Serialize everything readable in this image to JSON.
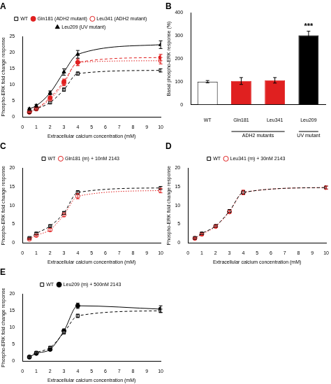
{
  "chart_data": [
    {
      "type": "line",
      "title": "A",
      "x_label": "Extracellular calcium concentration (mM)",
      "y_label": "Phospho-ERK fold change response",
      "x": [
        0.5,
        1,
        2,
        3,
        4,
        10
      ],
      "xlim": [
        0,
        10
      ],
      "xticks": [
        0,
        1,
        2,
        3,
        4,
        5,
        6,
        7,
        8,
        9,
        10
      ],
      "ylim": [
        0,
        25
      ],
      "yticks": [
        0,
        5,
        10,
        15,
        20,
        25
      ],
      "grid": false,
      "legend": "top",
      "series": [
        {
          "name": "WT",
          "color": "#000000",
          "marker": "square_open",
          "line_style": "dashed",
          "values": [
            1.5,
            2.5,
            4.5,
            8.5,
            13.5,
            14.5
          ],
          "errors": [
            0.2,
            0.3,
            0.4,
            0.5,
            0.5,
            0.5
          ]
        },
        {
          "name": "Gln181 (ADH2 mutant)",
          "color": "#e02020",
          "marker": "circle_filled",
          "line_style": "dashed",
          "values": [
            1.5,
            2.5,
            6,
            11,
            17,
            18.5
          ],
          "errors": [
            0.2,
            0.3,
            0.5,
            0.8,
            1,
            1
          ]
        },
        {
          "name": "Leu341 (ADH2 mutant)",
          "color": "#e02020",
          "marker": "circle_open",
          "line_style": "dotted",
          "values": [
            1.5,
            2.5,
            5.5,
            10.5,
            17,
            17.5
          ],
          "errors": [
            0.2,
            0.3,
            0.5,
            0.8,
            1,
            1
          ]
        },
        {
          "name": "Leu209 (UV mutant)",
          "color": "#000000",
          "marker": "triangle_filled",
          "line_style": "solid",
          "values": [
            2.5,
            3.5,
            7.5,
            14,
            19.5,
            22.5
          ],
          "errors": [
            0.3,
            0.4,
            0.6,
            1,
            1.2,
            1.2
          ]
        }
      ]
    },
    {
      "type": "bar",
      "title": "B",
      "y_label": "Basal phospho-ERK response (%)",
      "categories": [
        "WT",
        "Gln181",
        "Leu341",
        "Leu209"
      ],
      "values": [
        100,
        103,
        106,
        302
      ],
      "errors": [
        5,
        15,
        12,
        18
      ],
      "colors": [
        "#ffffff",
        "#e02020",
        "#e02020",
        "#000000"
      ],
      "ylim": [
        0,
        400
      ],
      "yticks": [
        0,
        100,
        200,
        300,
        400
      ],
      "grid": false,
      "groups": [
        {
          "label": "ADH2 mutants",
          "categories": [
            "Gln181",
            "Leu341"
          ]
        },
        {
          "label": "UV mutant",
          "categories": [
            "Leu209"
          ]
        }
      ],
      "annotations": [
        {
          "text": "***",
          "category": "Leu209"
        }
      ]
    },
    {
      "type": "line",
      "title": "C",
      "x_label": "Extracellular calcium concentration (mM)",
      "y_label": "Phospho-ERK fold change response",
      "x": [
        0.5,
        1,
        2,
        3,
        4,
        10
      ],
      "xlim": [
        0,
        10
      ],
      "xticks": [
        0,
        1,
        2,
        3,
        4,
        5,
        6,
        7,
        8,
        9,
        10
      ],
      "ylim": [
        0,
        20
      ],
      "yticks": [
        0,
        5,
        10,
        15,
        20
      ],
      "grid": false,
      "legend": "top",
      "series": [
        {
          "name": "WT",
          "color": "#000000",
          "marker": "square_open",
          "line_style": "dashed",
          "values": [
            1.3,
            2.5,
            4.5,
            8,
            13.5,
            14.7
          ],
          "errors": [
            0.2,
            0.3,
            0.3,
            0.4,
            0.5,
            0.4
          ]
        },
        {
          "name": "Gln181 (m) + 10nM 2143",
          "color": "#e02020",
          "marker": "circle_open",
          "line_style": "dotted",
          "values": [
            1,
            2,
            3.5,
            7.5,
            12.5,
            14
          ],
          "errors": [
            0.2,
            0.3,
            0.4,
            0.5,
            0.7,
            0.6
          ]
        }
      ]
    },
    {
      "type": "line",
      "title": "D",
      "x_label": "Extracellular calcium concentration (mM)",
      "y_label": "Phospho-ERK fold change response",
      "x": [
        0.5,
        1,
        2,
        3,
        4,
        10
      ],
      "xlim": [
        0,
        10
      ],
      "xticks": [
        0,
        1,
        2,
        3,
        4,
        5,
        6,
        7,
        8,
        9,
        10
      ],
      "ylim": [
        0,
        20
      ],
      "yticks": [
        0,
        5,
        10,
        15,
        20
      ],
      "grid": false,
      "legend": "top",
      "series": [
        {
          "name": "WT",
          "color": "#000000",
          "marker": "square_open",
          "line_style": "dashed",
          "values": [
            1.3,
            2.5,
            4.5,
            8.5,
            13.5,
            14.8
          ],
          "errors": [
            0.2,
            0.3,
            0.3,
            0.4,
            0.5,
            0.4
          ]
        },
        {
          "name": "Leu341 (m) + 30nM 2143",
          "color": "#e02020",
          "marker": "circle_open",
          "line_style": "dotted",
          "values": [
            1.2,
            2.3,
            4.4,
            8.3,
            13.5,
            14.8
          ],
          "errors": [
            0.2,
            0.3,
            0.3,
            0.4,
            0.6,
            0.4
          ]
        }
      ]
    },
    {
      "type": "line",
      "title": "E",
      "x_label": "Extracellular calcium concentration (mM)",
      "y_label": "Phospho-ERK fold change response",
      "x": [
        0.5,
        1,
        2,
        3,
        4,
        10
      ],
      "xlim": [
        0,
        10
      ],
      "xticks": [
        0,
        1,
        2,
        3,
        4,
        5,
        6,
        7,
        8,
        9,
        10
      ],
      "ylim": [
        0,
        20
      ],
      "yticks": [
        0,
        5,
        10,
        15,
        20
      ],
      "grid": false,
      "legend": "top",
      "series": [
        {
          "name": "WT",
          "color": "#000000",
          "marker": "square_open",
          "line_style": "dashed",
          "values": [
            1.2,
            2.5,
            4,
            8.5,
            13.5,
            15
          ],
          "errors": [
            0.2,
            0.3,
            0.3,
            0.4,
            0.5,
            0.5
          ]
        },
        {
          "name": "Leu209 (m) + 500nM 2143",
          "color": "#000000",
          "marker": "circle_filled",
          "line_style": "solid",
          "values": [
            1.2,
            2.3,
            3.5,
            9,
            16.5,
            15.5
          ],
          "errors": [
            0.2,
            0.3,
            0.4,
            0.6,
            0.8,
            1
          ]
        }
      ]
    }
  ]
}
